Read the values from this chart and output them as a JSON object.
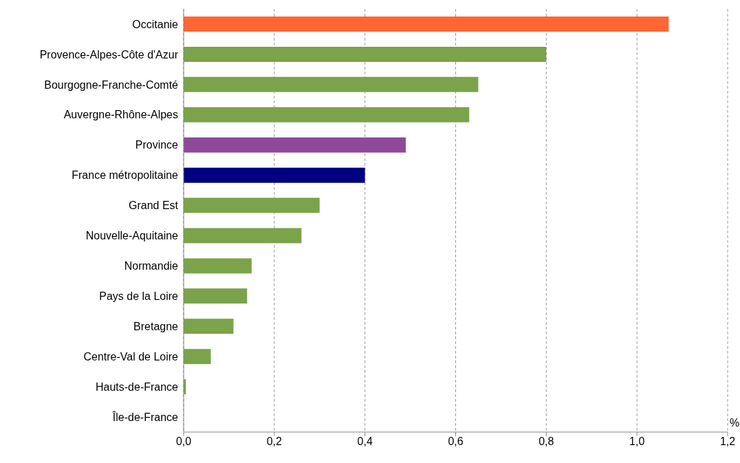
{
  "chart_data": {
    "type": "bar",
    "orientation": "horizontal",
    "xlabel": "%",
    "categories": [
      "Occitanie",
      "Provence-Alpes-Côte d'Azur",
      "Bourgogne-Franche-Comté",
      "Auvergne-Rhône-Alpes",
      "Province",
      "France métropolitaine",
      "Grand Est",
      "Nouvelle-Aquitaine",
      "Normandie",
      "Pays de la Loire",
      "Bretagne",
      "Centre-Val de Loire",
      "Hauts-de-France",
      "Île-de-France"
    ],
    "values": [
      1.07,
      0.8,
      0.65,
      0.63,
      0.49,
      0.4,
      0.3,
      0.26,
      0.15,
      0.14,
      0.11,
      0.06,
      0.005,
      0
    ],
    "colors": [
      "#ff6633",
      "#7ba34a",
      "#7ba34a",
      "#7ba34a",
      "#8e4a98",
      "#000080",
      "#7ba34a",
      "#7ba34a",
      "#7ba34a",
      "#7ba34a",
      "#7ba34a",
      "#7ba34a",
      "#7ba34a",
      "#7ba34a"
    ],
    "xlim": [
      0,
      1.2
    ],
    "xticks": [
      {
        "value": 0,
        "label": "0,0"
      },
      {
        "value": 0.2,
        "label": "0,2"
      },
      {
        "value": 0.4,
        "label": "0,4"
      },
      {
        "value": 0.6,
        "label": "0,6"
      },
      {
        "value": 0.8,
        "label": "0,8"
      },
      {
        "value": 1,
        "label": "1,0"
      },
      {
        "value": 1.2,
        "label": "1,2"
      }
    ],
    "grid": "x"
  }
}
